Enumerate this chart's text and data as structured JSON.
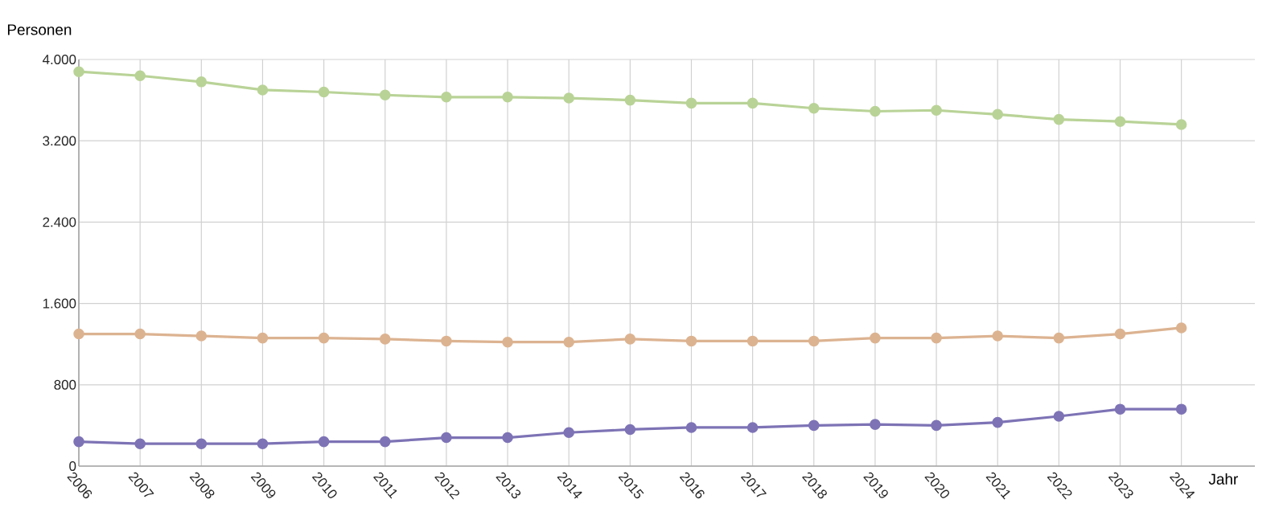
{
  "chart_data": {
    "type": "line",
    "ylabel": "Personen",
    "xlabel": "Jahr",
    "categories": [
      "2006",
      "2007",
      "2008",
      "2009",
      "2010",
      "2011",
      "2012",
      "2013",
      "2014",
      "2015",
      "2016",
      "2017",
      "2018",
      "2019",
      "2020",
      "2021",
      "2022",
      "2023",
      "2024"
    ],
    "ylim": [
      0,
      4000
    ],
    "yticks": [
      0,
      800,
      {
        "value": 1600,
        "label": "1.600"
      },
      {
        "value": 2400,
        "label": "2.400"
      },
      {
        "value": 3200,
        "label": "3.200"
      },
      {
        "value": 4000,
        "label": "4.000"
      }
    ],
    "grid": true,
    "marker": "circle",
    "line_style": "solid",
    "series": [
      {
        "color": "#b9d397",
        "values": [
          3880,
          3840,
          3780,
          3700,
          3680,
          3650,
          3630,
          3630,
          3620,
          3600,
          3570,
          3570,
          3520,
          3490,
          3500,
          3460,
          3410,
          3390,
          3360
        ]
      },
      {
        "color": "#dcb391",
        "values": [
          1300,
          1300,
          1280,
          1260,
          1260,
          1250,
          1230,
          1220,
          1220,
          1250,
          1230,
          1230,
          1230,
          1260,
          1260,
          1280,
          1260,
          1300,
          1360
        ]
      },
      {
        "color": "#7d73b5",
        "values": [
          240,
          220,
          220,
          220,
          240,
          240,
          280,
          280,
          330,
          360,
          380,
          380,
          400,
          410,
          400,
          430,
          490,
          560,
          560
        ]
      }
    ]
  }
}
